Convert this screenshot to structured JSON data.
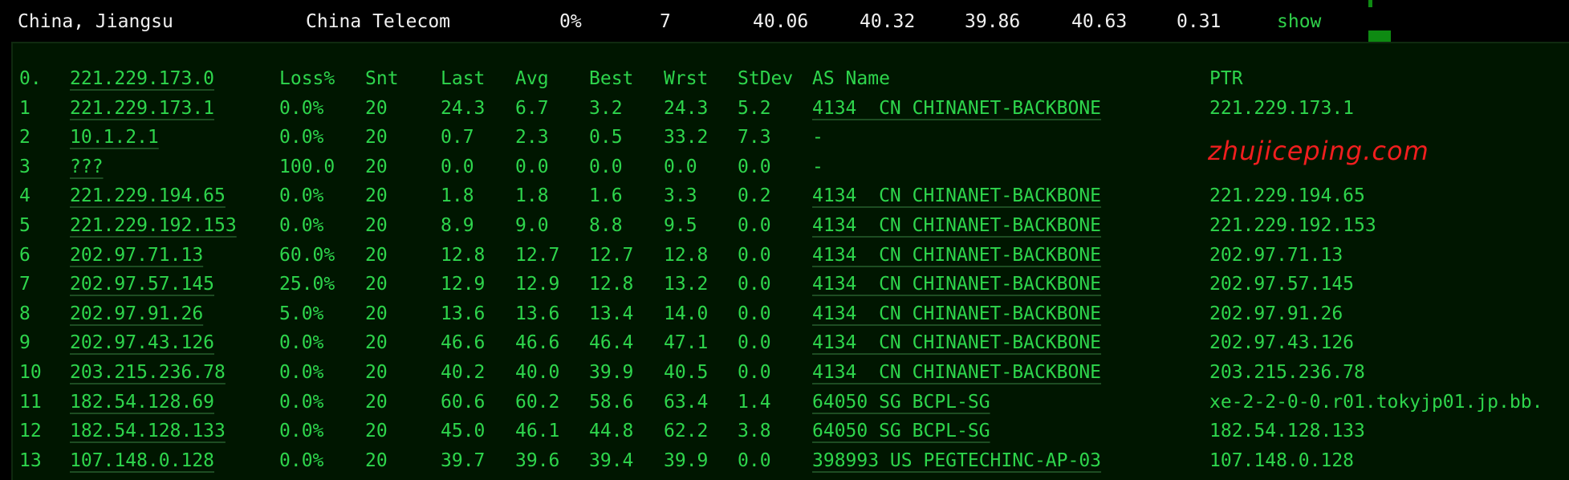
{
  "summary": {
    "location": "China, Jiangsu",
    "isp": "China Telecom",
    "loss": "0%",
    "sent": "7",
    "last": "40.06",
    "avg": "40.32",
    "best": "39.86",
    "worst": "40.63",
    "stdev": "0.31",
    "action": "show"
  },
  "header": {
    "index": "0.",
    "host": "221.229.173.0",
    "loss": "Loss%",
    "snt": "Snt",
    "last": "Last",
    "avg": "Avg",
    "best": "Best",
    "wrst": "Wrst",
    "stdev": "StDev",
    "as": "AS Name",
    "ptr": "PTR"
  },
  "hops": [
    {
      "index": "1",
      "host": "221.229.173.1",
      "loss": "0.0%",
      "snt": "20",
      "last": "24.3",
      "avg": "6.7",
      "best": "3.2",
      "wrst": "24.3",
      "stdev": "5.2",
      "as": "4134  CN CHINANET-BACKBONE",
      "ptr": "221.229.173.1"
    },
    {
      "index": "2",
      "host": "10.1.2.1",
      "loss": "0.0%",
      "snt": "20",
      "last": "0.7",
      "avg": "2.3",
      "best": "0.5",
      "wrst": "33.2",
      "stdev": "7.3",
      "as": "-",
      "ptr": ""
    },
    {
      "index": "3",
      "host": "???",
      "loss": "100.0",
      "snt": "20",
      "last": "0.0",
      "avg": "0.0",
      "best": "0.0",
      "wrst": "0.0",
      "stdev": "0.0",
      "as": "-",
      "ptr": ""
    },
    {
      "index": "4",
      "host": "221.229.194.65",
      "loss": "0.0%",
      "snt": "20",
      "last": "1.8",
      "avg": "1.8",
      "best": "1.6",
      "wrst": "3.3",
      "stdev": "0.2",
      "as": "4134  CN CHINANET-BACKBONE",
      "ptr": "221.229.194.65"
    },
    {
      "index": "5",
      "host": "221.229.192.153",
      "loss": "0.0%",
      "snt": "20",
      "last": "8.9",
      "avg": "9.0",
      "best": "8.8",
      "wrst": "9.5",
      "stdev": "0.0",
      "as": "4134  CN CHINANET-BACKBONE",
      "ptr": "221.229.192.153"
    },
    {
      "index": "6",
      "host": "202.97.71.13",
      "loss": "60.0%",
      "snt": "20",
      "last": "12.8",
      "avg": "12.7",
      "best": "12.7",
      "wrst": "12.8",
      "stdev": "0.0",
      "as": "4134  CN CHINANET-BACKBONE",
      "ptr": "202.97.71.13"
    },
    {
      "index": "7",
      "host": "202.97.57.145",
      "loss": "25.0%",
      "snt": "20",
      "last": "12.9",
      "avg": "12.9",
      "best": "12.8",
      "wrst": "13.2",
      "stdev": "0.0",
      "as": "4134  CN CHINANET-BACKBONE",
      "ptr": "202.97.57.145"
    },
    {
      "index": "8",
      "host": "202.97.91.26",
      "loss": "5.0%",
      "snt": "20",
      "last": "13.6",
      "avg": "13.6",
      "best": "13.4",
      "wrst": "14.0",
      "stdev": "0.0",
      "as": "4134  CN CHINANET-BACKBONE",
      "ptr": "202.97.91.26"
    },
    {
      "index": "9",
      "host": "202.97.43.126",
      "loss": "0.0%",
      "snt": "20",
      "last": "46.6",
      "avg": "46.6",
      "best": "46.4",
      "wrst": "47.1",
      "stdev": "0.0",
      "as": "4134  CN CHINANET-BACKBONE",
      "ptr": "202.97.43.126"
    },
    {
      "index": "10",
      "host": "203.215.236.78",
      "loss": "0.0%",
      "snt": "20",
      "last": "40.2",
      "avg": "40.0",
      "best": "39.9",
      "wrst": "40.5",
      "stdev": "0.0",
      "as": "4134  CN CHINANET-BACKBONE",
      "ptr": "203.215.236.78"
    },
    {
      "index": "11",
      "host": "182.54.128.69",
      "loss": "0.0%",
      "snt": "20",
      "last": "60.6",
      "avg": "60.2",
      "best": "58.6",
      "wrst": "63.4",
      "stdev": "1.4",
      "as": "64050 SG BCPL-SG",
      "ptr": "xe-2-2-0-0.r01.tokyjp01.jp.bb."
    },
    {
      "index": "12",
      "host": "182.54.128.133",
      "loss": "0.0%",
      "snt": "20",
      "last": "45.0",
      "avg": "46.1",
      "best": "44.8",
      "wrst": "62.2",
      "stdev": "3.8",
      "as": "64050 SG BCPL-SG",
      "ptr": "182.54.128.133"
    },
    {
      "index": "13",
      "host": "107.148.0.128",
      "loss": "0.0%",
      "snt": "20",
      "last": "39.7",
      "avg": "39.6",
      "best": "39.4",
      "wrst": "39.9",
      "stdev": "0.0",
      "as": "398993 US PEGTECHINC-AP-03",
      "ptr": "107.148.0.128"
    }
  ],
  "watermark": "zhujiceping.com",
  "colors": {
    "text": "#2ed54c",
    "panel_bg": "#001600",
    "watermark": "#f01e1e"
  }
}
